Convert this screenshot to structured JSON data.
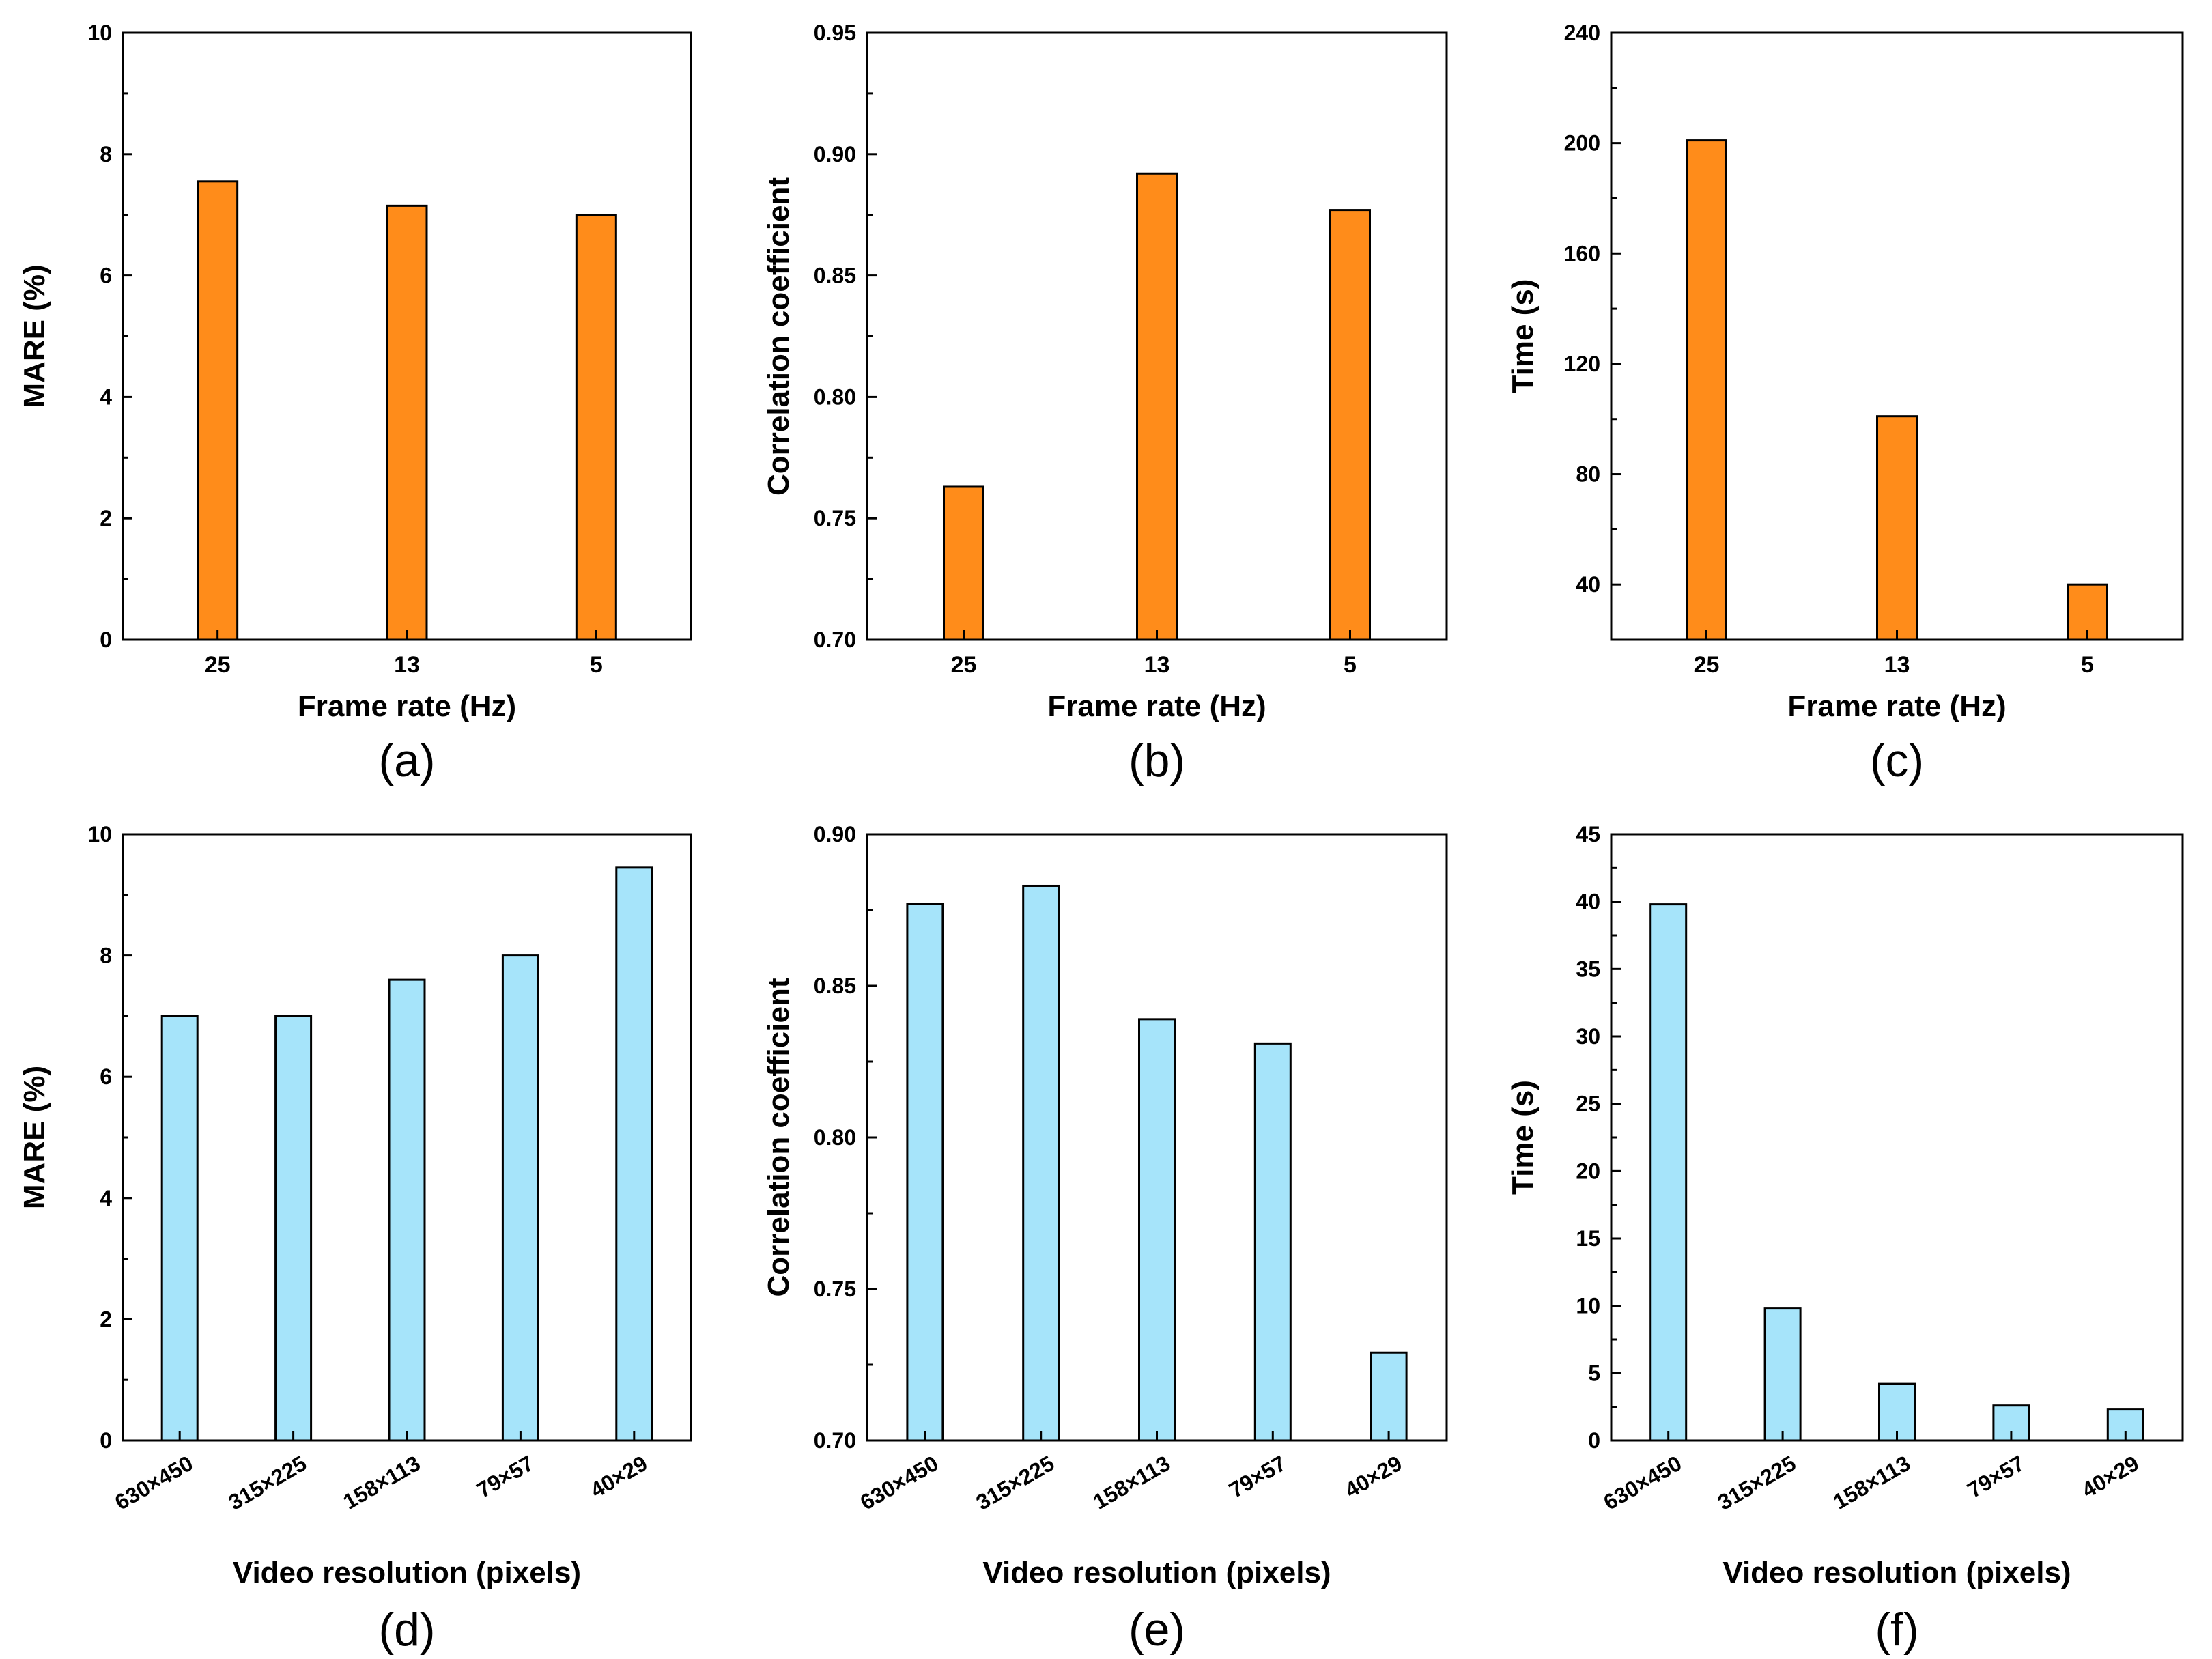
{
  "colors": {
    "frame_rate_bar": "#FF8C1A",
    "resolution_bar": "#A6E4FA",
    "stroke": "#000000"
  },
  "chart_data": [
    {
      "id": "a",
      "type": "bar",
      "caption": "(a)",
      "xlabel": "Frame rate (Hz)",
      "ylabel": "MARE (%)",
      "categories": [
        "25",
        "13",
        "5"
      ],
      "values": [
        7.55,
        7.15,
        7.0
      ],
      "ylim": [
        0,
        10
      ],
      "yticks": [
        0,
        2,
        4,
        6,
        8,
        10
      ],
      "ytick_labels": [
        "0",
        "2",
        "4",
        "6",
        "8",
        "10"
      ],
      "grid": false,
      "color": "#FF8C1A"
    },
    {
      "id": "b",
      "type": "bar",
      "caption": "(b)",
      "xlabel": "Frame rate (Hz)",
      "ylabel": "Correlation coefficient",
      "categories": [
        "25",
        "13",
        "5"
      ],
      "values": [
        0.763,
        0.892,
        0.877
      ],
      "ylim": [
        0.7,
        0.95
      ],
      "yticks": [
        0.7,
        0.75,
        0.8,
        0.85,
        0.9,
        0.95
      ],
      "ytick_labels": [
        "0.70",
        "0.75",
        "0.80",
        "0.85",
        "0.90",
        "0.95"
      ],
      "grid": false,
      "color": "#FF8C1A"
    },
    {
      "id": "c",
      "type": "bar",
      "caption": "(c)",
      "xlabel": "Frame rate (Hz)",
      "ylabel": "Time (s)",
      "categories": [
        "25",
        "13",
        "5"
      ],
      "values": [
        201,
        101,
        40
      ],
      "ylim": [
        20,
        240
      ],
      "yticks": [
        40,
        80,
        120,
        160,
        200,
        240
      ],
      "ytick_labels": [
        "40",
        "80",
        "120",
        "160",
        "200",
        "240"
      ],
      "grid": false,
      "color": "#FF8C1A"
    },
    {
      "id": "d",
      "type": "bar",
      "caption": "(d)",
      "xlabel": "Video resolution (pixels)",
      "ylabel": "MARE (%)",
      "categories": [
        "630×450",
        "315×225",
        "158×113",
        "79×57",
        "40×29"
      ],
      "values": [
        7.0,
        7.0,
        7.6,
        8.0,
        9.45
      ],
      "ylim": [
        0,
        10
      ],
      "yticks": [
        0,
        2,
        4,
        6,
        8,
        10
      ],
      "ytick_labels": [
        "0",
        "2",
        "4",
        "6",
        "8",
        "10"
      ],
      "grid": false,
      "color": "#A6E4FA"
    },
    {
      "id": "e",
      "type": "bar",
      "caption": "(e)",
      "xlabel": "Video resolution (pixels)",
      "ylabel": "Correlation coefficient",
      "categories": [
        "630×450",
        "315×225",
        "158×113",
        "79×57",
        "40×29"
      ],
      "values": [
        0.877,
        0.883,
        0.839,
        0.831,
        0.729
      ],
      "ylim": [
        0.7,
        0.9
      ],
      "yticks": [
        0.7,
        0.75,
        0.8,
        0.85,
        0.9
      ],
      "ytick_labels": [
        "0.70",
        "0.75",
        "0.80",
        "0.85",
        "0.90"
      ],
      "grid": false,
      "color": "#A6E4FA"
    },
    {
      "id": "f",
      "type": "bar",
      "caption": "(f)",
      "xlabel": "Video resolution (pixels)",
      "ylabel": "Time (s)",
      "categories": [
        "630×450",
        "315×225",
        "158×113",
        "79×57",
        "40×29"
      ],
      "values": [
        39.8,
        9.8,
        4.2,
        2.6,
        2.3
      ],
      "ylim": [
        0,
        45
      ],
      "yticks": [
        0,
        5,
        10,
        15,
        20,
        25,
        30,
        35,
        40,
        45
      ],
      "ytick_labels": [
        "0",
        "5",
        "10",
        "15",
        "20",
        "25",
        "30",
        "35",
        "40",
        "45"
      ],
      "grid": false,
      "color": "#A6E4FA"
    }
  ]
}
